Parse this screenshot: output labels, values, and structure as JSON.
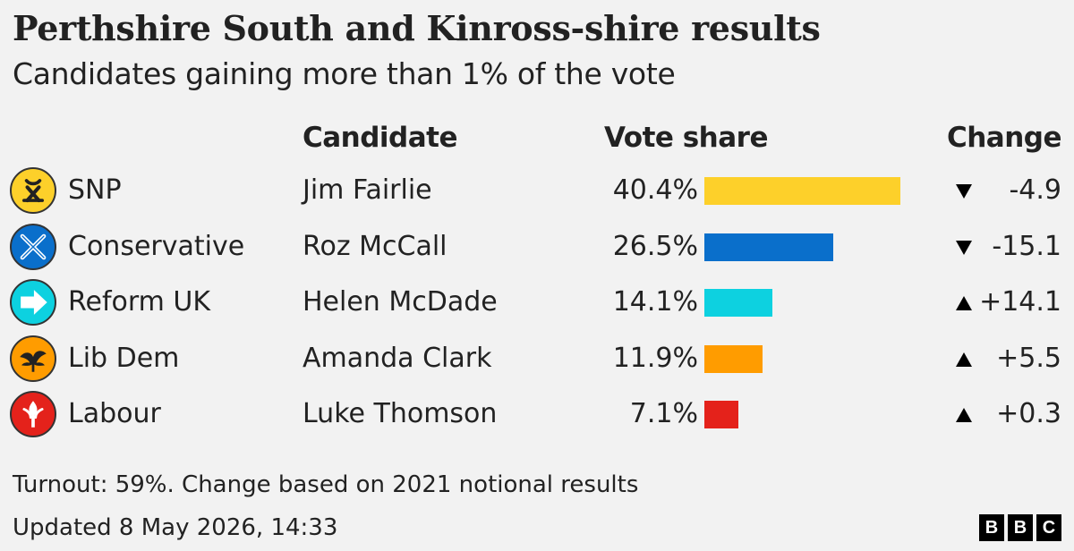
{
  "title": "Perthshire South and Kinross-shire results",
  "subtitle": "Candidates gaining more than 1% of the vote",
  "headers": {
    "candidate": "Candidate",
    "vote_share": "Vote share",
    "change": "Change"
  },
  "footer": {
    "turnout_note": "Turnout: 59%. Change based on 2021 notional results",
    "updated": "Updated 8 May 2026, 14:33"
  },
  "brand": {
    "letters": [
      "B",
      "B",
      "C"
    ]
  },
  "chart_data": {
    "type": "bar",
    "orientation": "horizontal",
    "title": "Perthshire South and Kinross-shire results",
    "subtitle": "Candidates gaining more than 1% of the vote",
    "unit": "%",
    "grid": false,
    "xlim": [
      0,
      40.4
    ],
    "rows": [
      {
        "party": "SNP",
        "candidate": "Jim Fairlie",
        "value": 40.4,
        "value_label": "40.4%",
        "change": -4.9,
        "change_label": "-4.9",
        "direction": "down",
        "color": "#fdd02a",
        "logo_bg": "#fdd02a",
        "icon": "snp-icon"
      },
      {
        "party": "Conservative",
        "candidate": "Roz McCall",
        "value": 26.5,
        "value_label": "26.5%",
        "change": -15.1,
        "change_label": "-15.1",
        "direction": "down",
        "color": "#0a6fcb",
        "logo_bg": "#0a6fcb",
        "icon": "conservative-icon"
      },
      {
        "party": "Reform UK",
        "candidate": "Helen McDade",
        "value": 14.1,
        "value_label": "14.1%",
        "change": 14.1,
        "change_label": "+14.1",
        "direction": "up",
        "color": "#0dd1e0",
        "logo_bg": "#0dd1e0",
        "icon": "reform-icon"
      },
      {
        "party": "Lib Dem",
        "candidate": "Amanda Clark",
        "value": 11.9,
        "value_label": "11.9%",
        "change": 5.5,
        "change_label": "+5.5",
        "direction": "up",
        "color": "#ff9c00",
        "logo_bg": "#ff9c00",
        "icon": "lib-dem-icon"
      },
      {
        "party": "Labour",
        "candidate": "Luke Thomson",
        "value": 7.1,
        "value_label": "7.1%",
        "change": 0.3,
        "change_label": "+0.3",
        "direction": "up",
        "color": "#e4221b",
        "logo_bg": "#e4221b",
        "icon": "labour-icon"
      }
    ]
  }
}
